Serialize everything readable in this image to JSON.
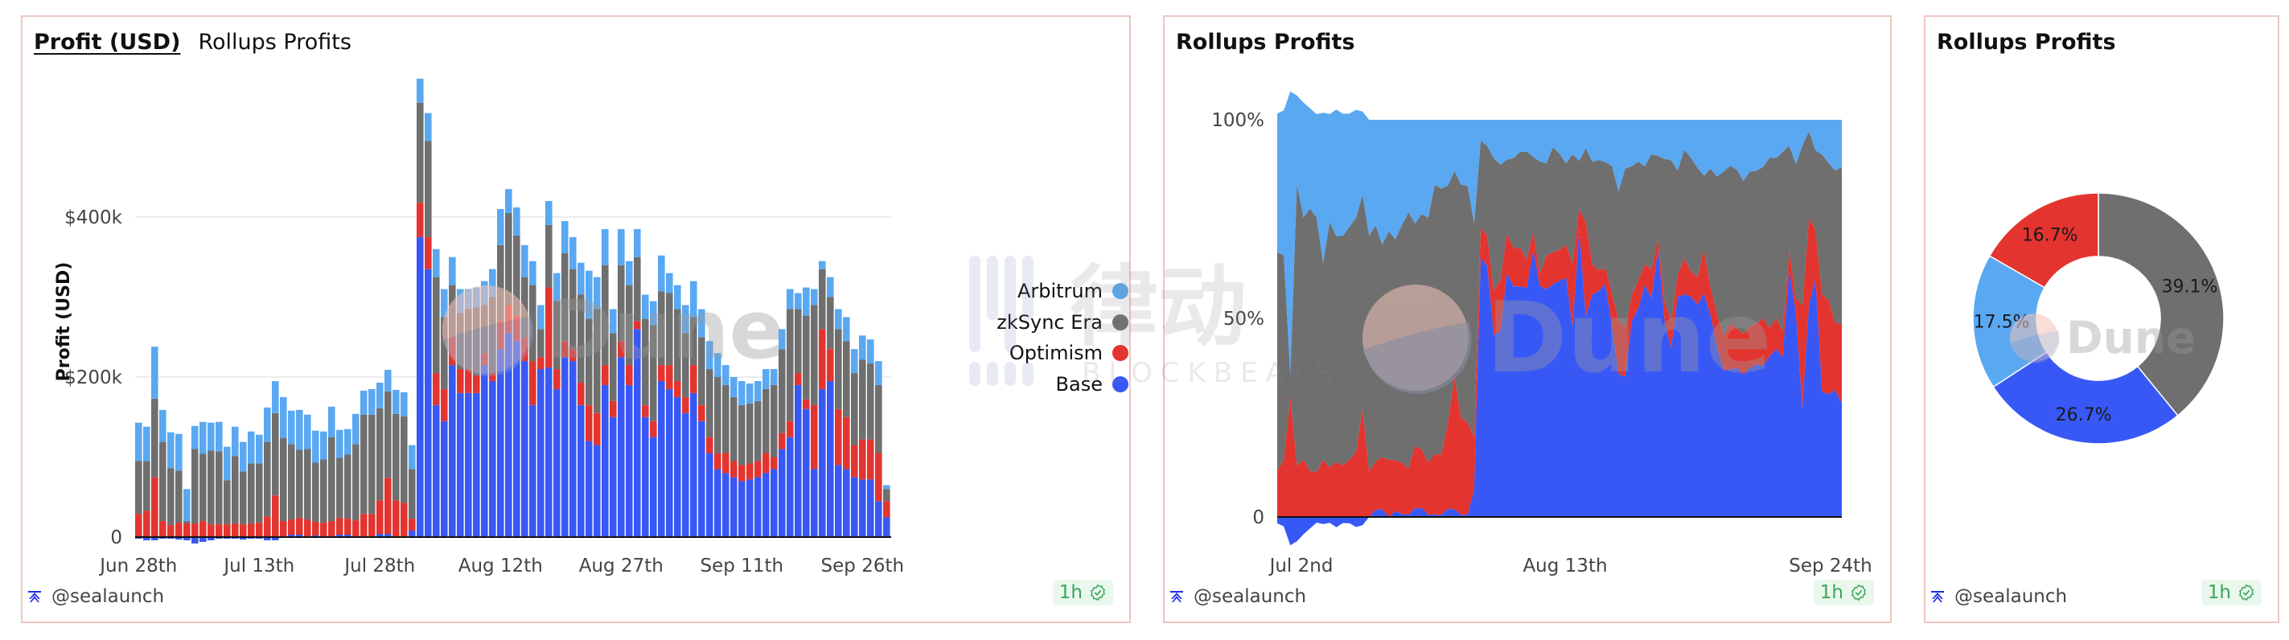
{
  "colors": {
    "arbitrum": "#5aa8f2",
    "zksync": "#6f6f6f",
    "optimism": "#e3342f",
    "base": "#3858f5",
    "card_border": "#ecc6c0",
    "badge_bg": "#e9f7ec",
    "badge_fg": "#3aa55c"
  },
  "cards": [
    {
      "tabs": [
        {
          "label": "Profit (USD)",
          "active": true
        },
        {
          "label": "Rollups Profits",
          "active": false
        }
      ],
      "author": "@sealaunch",
      "freshness": "1h"
    },
    {
      "title": "Rollups Profits",
      "author": "@sealaunch",
      "freshness": "1h"
    },
    {
      "title": "Rollups Profits",
      "author": "@sealaunch",
      "freshness": "1h"
    }
  ],
  "legend": [
    {
      "label": "Arbitrum",
      "key": "arbitrum"
    },
    {
      "label": "zkSync Era",
      "key": "zksync"
    },
    {
      "label": "Optimism",
      "key": "optimism"
    },
    {
      "label": "Base",
      "key": "base"
    }
  ],
  "watermarks": {
    "dune": "Dune",
    "blockbeats_cn": "律动",
    "blockbeats_en": "BLOCKBEATS"
  },
  "icons": {
    "author": "sealaunch-logo-icon",
    "freshness": "check-badge-icon"
  },
  "chart_data": [
    {
      "type": "bar",
      "stacked": true,
      "title": "Profit (USD)",
      "xlabel": "",
      "ylabel": "Profit (USD)",
      "ylim": [
        -10000,
        560000
      ],
      "yticks": [
        {
          "value": 0,
          "label": "0"
        },
        {
          "value": 200000,
          "label": "$200k"
        },
        {
          "value": 400000,
          "label": "$400k"
        }
      ],
      "xticks": [
        {
          "index": 0,
          "label": "Jun 28th"
        },
        {
          "index": 15,
          "label": "Jul 13th"
        },
        {
          "index": 30,
          "label": "Jul 28th"
        },
        {
          "index": 45,
          "label": "Aug 12th"
        },
        {
          "index": 60,
          "label": "Aug 27th"
        },
        {
          "index": 75,
          "label": "Sep 11th"
        },
        {
          "index": 90,
          "label": "Sep 26th"
        }
      ],
      "x_start": "Jun 28th",
      "grid": true,
      "legend_position": "right",
      "series_order": [
        "base",
        "optimism",
        "zksync",
        "arbitrum"
      ],
      "series": [
        {
          "name": "Base",
          "key": "base",
          "values": [
            -2,
            -4,
            -4,
            -2,
            -2,
            -3,
            -4,
            -8,
            -6,
            -4,
            -2,
            -2,
            -2,
            -3,
            -2,
            -2,
            -4,
            -4,
            0,
            3,
            3,
            0,
            2,
            1,
            1,
            3,
            3,
            1,
            1,
            1,
            4,
            4,
            1,
            1,
            8,
            375,
            335,
            165,
            145,
            215,
            180,
            180,
            180,
            215,
            195,
            235,
            255,
            245,
            220,
            165,
            210,
            212,
            185,
            225,
            220,
            165,
            120,
            115,
            190,
            150,
            225,
            190,
            260,
            150,
            125,
            195,
            185,
            175,
            155,
            180,
            145,
            105,
            85,
            80,
            75,
            70,
            72,
            75,
            80,
            85,
            110,
            125,
            190,
            160,
            85,
            185,
            195,
            90,
            85,
            75,
            72,
            72,
            45,
            25
          ],
          "unit": "k USD"
        },
        {
          "name": "Optimism",
          "key": "optimism",
          "values": [
            29,
            33,
            75,
            20,
            15,
            18,
            17,
            17,
            20,
            16,
            16,
            16,
            17,
            16,
            17,
            18,
            26,
            52,
            20,
            19,
            21,
            22,
            17,
            17,
            19,
            21,
            20,
            20,
            28,
            28,
            42,
            70,
            45,
            42,
            15,
            43,
            40,
            40,
            40,
            35,
            30,
            30,
            22,
            15,
            10,
            35,
            35,
            32,
            30,
            55,
            15,
            100,
            25,
            20,
            15,
            28,
            45,
            40,
            25,
            20,
            20,
            25,
            10,
            15,
            20,
            20,
            30,
            20,
            20,
            35,
            20,
            20,
            20,
            25,
            20,
            20,
            20,
            20,
            25,
            15,
            20,
            20,
            15,
            12,
            80,
            75,
            40,
            70,
            65,
            40,
            50,
            50,
            60,
            20
          ],
          "unit": "k USD"
        },
        {
          "name": "zkSync Era",
          "key": "zksync",
          "values": [
            66,
            62,
            98,
            99,
            71,
            65,
            3,
            93,
            84,
            92,
            91,
            55,
            84,
            66,
            75,
            74,
            93,
            103,
            104,
            94,
            85,
            88,
            74,
            79,
            105,
            75,
            80,
            95,
            124,
            124,
            115,
            108,
            108,
            108,
            62,
            125,
            120,
            120,
            90,
            65,
            70,
            75,
            85,
            60,
            95,
            95,
            115,
            100,
            75,
            95,
            35,
            78,
            85,
            110,
            100,
            110,
            108,
            130,
            125,
            85,
            95,
            100,
            80,
            108,
            120,
            92,
            90,
            90,
            80,
            60,
            85,
            85,
            95,
            85,
            80,
            75,
            75,
            75,
            80,
            90,
            105,
            140,
            80,
            105,
            125,
            75,
            65,
            100,
            95,
            90,
            100,
            95,
            85,
            15
          ],
          "unit": "k USD"
        },
        {
          "name": "Arbitrum",
          "key": "arbitrum",
          "values": [
            48,
            43,
            65,
            40,
            45,
            46,
            40,
            29,
            40,
            35,
            37,
            42,
            37,
            37,
            40,
            36,
            43,
            40,
            51,
            42,
            50,
            43,
            40,
            35,
            38,
            35,
            32,
            38,
            30,
            32,
            32,
            27,
            30,
            30,
            30,
            30,
            35,
            35,
            35,
            35,
            30,
            25,
            25,
            30,
            35,
            45,
            30,
            35,
            40,
            30,
            30,
            30,
            35,
            40,
            40,
            40,
            60,
            40,
            45,
            30,
            45,
            30,
            35,
            30,
            30,
            45,
            25,
            30,
            35,
            45,
            35,
            35,
            30,
            25,
            25,
            30,
            25,
            25,
            25,
            20,
            25,
            25,
            20,
            35,
            20,
            10,
            25,
            25,
            30,
            30,
            30,
            30,
            30,
            5
          ],
          "unit": "k USD"
        }
      ]
    },
    {
      "type": "area",
      "stacked": true,
      "normalized": true,
      "title": "Rollups Profits",
      "xlabel": "",
      "ylabel": "",
      "ylim": [
        -12,
        100
      ],
      "yticks": [
        {
          "value": 0,
          "label": "0"
        },
        {
          "value": 50,
          "label": "50%"
        },
        {
          "value": 100,
          "label": "100%"
        }
      ],
      "xticks": [
        {
          "index": 0,
          "label": "Jul 2nd"
        },
        {
          "index": 42,
          "label": "Aug 13th"
        },
        {
          "index": 84,
          "label": "Sep 24th"
        }
      ],
      "x_start": "Jul 2nd",
      "source": "same daily series as bar chart, starting Jul 2nd, shown as percent share",
      "series_order": [
        "base",
        "optimism",
        "zksync",
        "arbitrum"
      ]
    },
    {
      "type": "pie",
      "donut": true,
      "title": "Rollups Profits",
      "slices": [
        {
          "name": "zkSync Era",
          "key": "zksync",
          "value": 39.1,
          "label": "39.1%"
        },
        {
          "name": "Base",
          "key": "base",
          "value": 26.7,
          "label": "26.7%"
        },
        {
          "name": "Arbitrum",
          "key": "arbitrum",
          "value": 17.5,
          "label": "17.5%"
        },
        {
          "name": "Optimism",
          "key": "optimism",
          "value": 16.7,
          "label": "16.7%"
        }
      ]
    }
  ]
}
